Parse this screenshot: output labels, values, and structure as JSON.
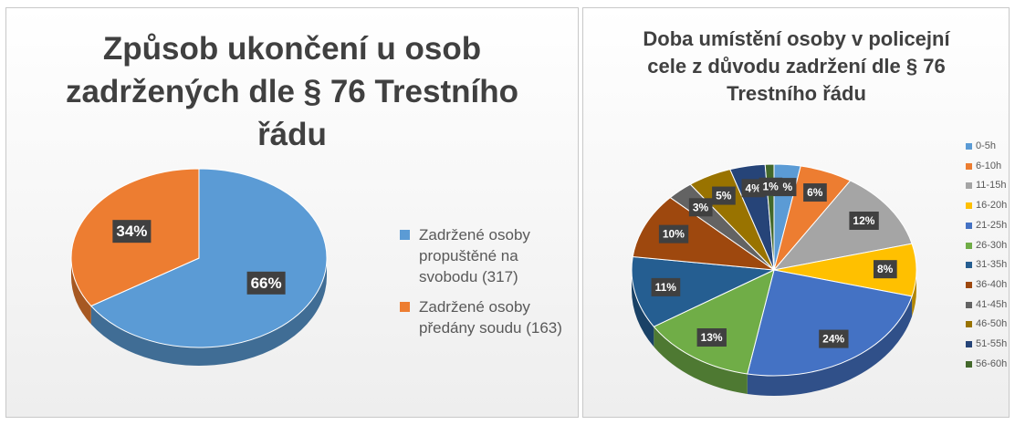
{
  "chart_data": [
    {
      "type": "pie",
      "title": "Způsob ukončení u osob zadržených dle § 76 Trestního řádu",
      "categories": [
        "Zadržené osoby propuštěné na svobodu (317)",
        "Zadržené osoby předány soudu (163)"
      ],
      "values": [
        66,
        34
      ],
      "value_labels": [
        "66%",
        "34%"
      ],
      "colors": [
        "#5b9bd5",
        "#ed7d31"
      ]
    },
    {
      "type": "pie",
      "title": "Doba umístění osoby v policejní cele z důvodu zadržení dle § 76 Trestního řádu",
      "categories": [
        "0-5h",
        "6-10h",
        "11-15h",
        "16-20h",
        "21-25h",
        "26-30h",
        "31-35h",
        "36-40h",
        "41-45h",
        "46-50h",
        "51-55h",
        "56-60h"
      ],
      "values": [
        3,
        6,
        12,
        8,
        24,
        13,
        11,
        10,
        3,
        5,
        4,
        1
      ],
      "value_labels": [
        "3%",
        "6%",
        "12%",
        "8%",
        "24%",
        "13%",
        "11%",
        "10%",
        "3%",
        "5%",
        "4%",
        "1%"
      ],
      "colors": [
        "#5b9bd5",
        "#ed7d31",
        "#a5a5a5",
        "#ffc000",
        "#4472c4",
        "#70ad47",
        "#255e91",
        "#9e480e",
        "#636363",
        "#997300",
        "#264478",
        "#43682b"
      ]
    }
  ]
}
